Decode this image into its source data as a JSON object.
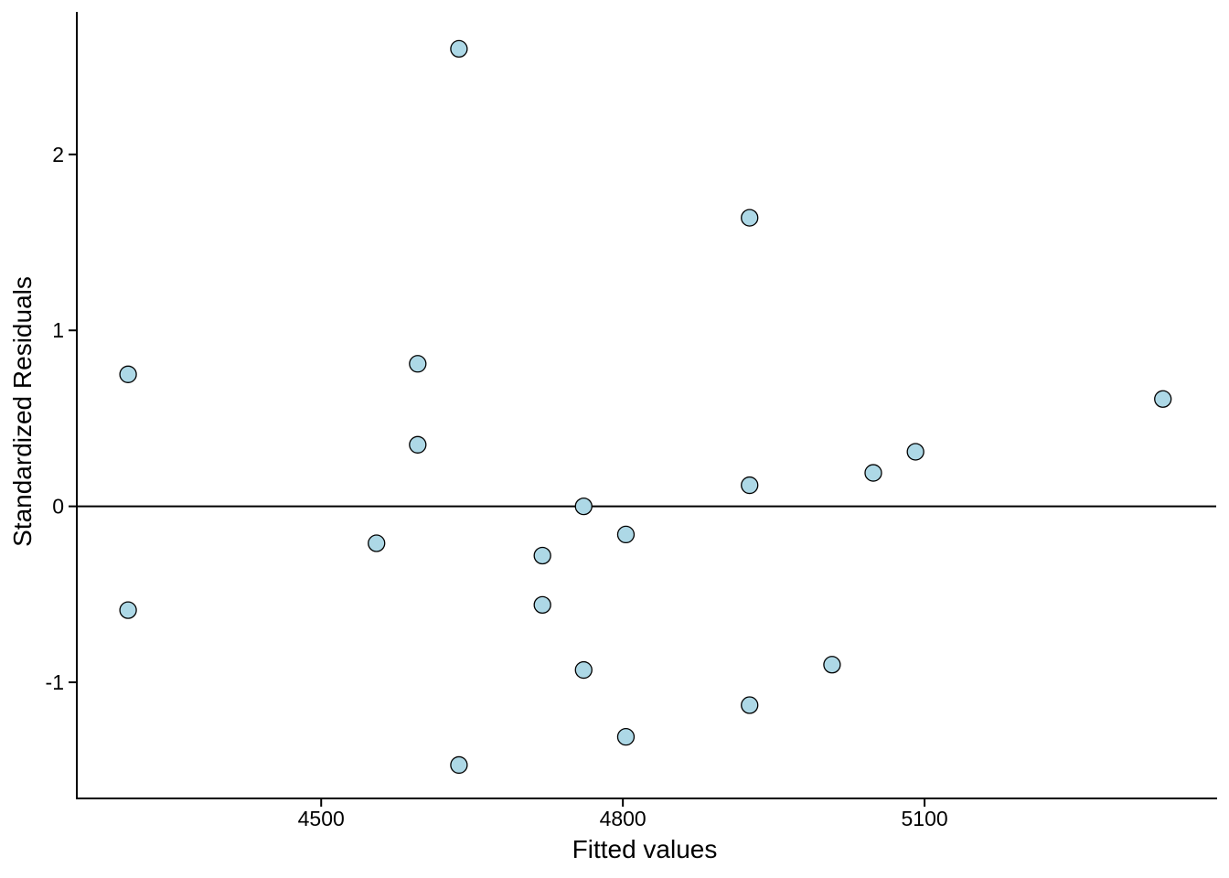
{
  "figure": {
    "background_color": "#ffffff"
  },
  "chart_data": {
    "type": "scatter",
    "title": "",
    "xlabel": "Fitted values",
    "ylabel": "Standardized Residuals",
    "x_ticks": [
      4500,
      4800,
      5100
    ],
    "x_tick_labels": [
      "4500",
      "4800",
      "5100"
    ],
    "y_ticks": [
      -1,
      0,
      1,
      2
    ],
    "y_tick_labels": [
      "-1",
      "0",
      "1",
      "2"
    ],
    "xlim": [
      4257,
      5390
    ],
    "ylim": [
      -1.66,
      2.81
    ],
    "grid": false,
    "legend_position": "none",
    "reference_line_y": 0,
    "points": [
      [
        4308,
        0.75
      ],
      [
        4308,
        -0.59
      ],
      [
        4555,
        -0.21
      ],
      [
        4596,
        0.81
      ],
      [
        4596,
        0.35
      ],
      [
        4637,
        2.6
      ],
      [
        4637,
        -1.47
      ],
      [
        4720,
        -0.28
      ],
      [
        4720,
        -0.56
      ],
      [
        4761,
        0.0
      ],
      [
        4761,
        -0.93
      ],
      [
        4803,
        -0.16
      ],
      [
        4803,
        -1.31
      ],
      [
        4926,
        1.64
      ],
      [
        4926,
        0.12
      ],
      [
        4926,
        -1.13
      ],
      [
        5008,
        -0.9
      ],
      [
        5049,
        0.19
      ],
      [
        5091,
        0.31
      ],
      [
        5337,
        0.61
      ]
    ],
    "point_style": {
      "fill": "#add8e6",
      "stroke": "#000000",
      "radius_px": 9
    },
    "axis_color": "#000000"
  }
}
